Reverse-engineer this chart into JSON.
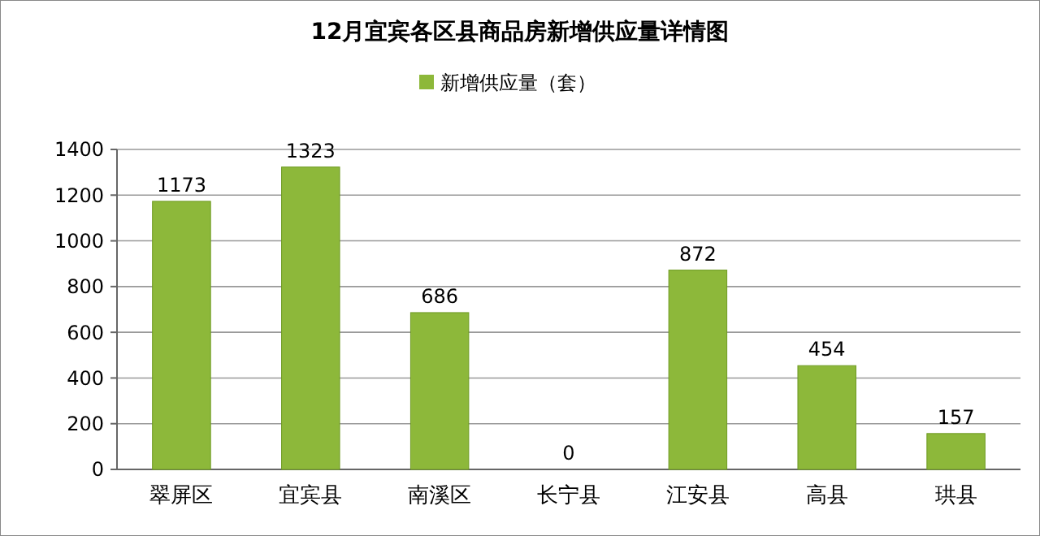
{
  "chart_data": {
    "type": "bar",
    "title": "12月宜宾各区县商品房新增供应量详情图",
    "categories": [
      "翠屏区",
      "宜宾县",
      "南溪区",
      "长宁县",
      "江安县",
      "高县",
      "珙县"
    ],
    "series": [
      {
        "name": "新增供应量（套）",
        "color": "#8db83a",
        "values": [
          1173,
          1323,
          686,
          0,
          872,
          454,
          157
        ]
      }
    ],
    "ylim": [
      0,
      1400
    ],
    "yticks": [
      0,
      200,
      400,
      600,
      800,
      1000,
      1200,
      1400
    ],
    "grid": "y",
    "legend": "top",
    "data_labels": true
  }
}
